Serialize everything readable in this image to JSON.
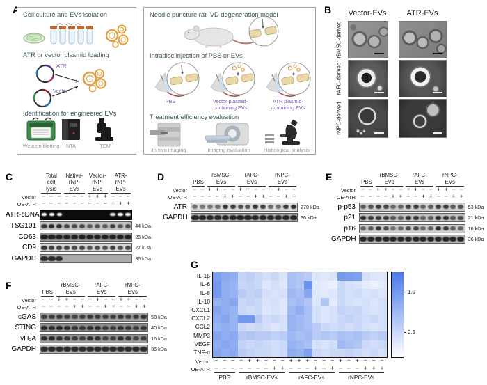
{
  "panels": {
    "a": {
      "label": "A",
      "left": {
        "step1_title": "Cell culture and EVs isolation",
        "step2_title": "ATR or vector plasmid loading",
        "step3_title": "Identification for engineered EVs",
        "plasmid_atr": "ATR",
        "plasmid_vector": "Vector",
        "captions": [
          "Western blotting",
          "NTA",
          "TEM"
        ]
      },
      "right": {
        "step1_title": "Needle puncture rat IVD degeneration model",
        "step2_title": "Intradisc injection of PBS or EVs",
        "step3_title": "Treatment efficiency evaluation",
        "injection_captions": [
          [
            "PBS"
          ],
          [
            "Vector plasmid-",
            "containing EVs"
          ],
          [
            "ATR plasmid-",
            "containing EVs"
          ]
        ],
        "evaluation_captions": [
          "In vivo imaging",
          "Imaging evaluation",
          "Histological analysis"
        ]
      },
      "colors": {
        "title": "#3c5656",
        "caption_gray": "#9a9a9a",
        "caption_purple": "#7a5ba8"
      }
    },
    "b": {
      "label": "B",
      "col_headers": [
        "Vector-EVs",
        "ATR-EVs"
      ],
      "row_labels": [
        "rBMSC-derived",
        "rAFC-derived",
        "rNPC-derived"
      ]
    },
    "c": {
      "label": "C",
      "groups": [
        {
          "lines": [
            "Total",
            "cell",
            "lysis"
          ],
          "lanes": 3
        },
        {
          "lines": [
            "Native-",
            "rNP-",
            "EVs"
          ],
          "lanes": 3
        },
        {
          "lines": [
            "Vector-",
            "rNP-",
            "EVs"
          ],
          "lanes": 3
        },
        {
          "lines": [
            "ATR-",
            "rNP-",
            "EVs"
          ],
          "lanes": 3
        }
      ],
      "conditions": [
        {
          "label": "Vector",
          "marks": [
            "−",
            "−",
            "−",
            "−",
            "−",
            "−",
            "+",
            "+",
            "+",
            "−",
            "−",
            "−"
          ]
        },
        {
          "label": "OE-ATR",
          "marks": [
            "−",
            "−",
            "−",
            "−",
            "−",
            "−",
            "−",
            "−",
            "−",
            "+",
            "+",
            "+"
          ]
        }
      ],
      "blots": [
        {
          "label": "ATR-cDNA",
          "kda": "",
          "gel": true,
          "bands": [
            1,
            1,
            0.95,
            0,
            0,
            0,
            0,
            0,
            0,
            0.9,
            1,
            1.05
          ],
          "bg": "#0d0d0d"
        },
        {
          "label": "TSG101",
          "kda": "44 kDa",
          "bands": [
            0.85,
            1,
            0.95,
            0.75,
            0.7,
            0.75,
            0.55,
            0.65,
            0.55,
            0.8,
            0.6,
            0.7
          ],
          "bg": "#c2c2c2"
        },
        {
          "label": "CD63",
          "kda": "26 kDa",
          "wide": true,
          "bands": [
            1,
            1,
            1,
            1,
            1,
            1,
            1,
            1,
            1,
            1,
            1,
            1
          ],
          "bg": "#8f8f8f"
        },
        {
          "label": "CD9",
          "kda": "27 kDa",
          "bands": [
            0.95,
            0.85,
            0.85,
            0.85,
            0.8,
            0.8,
            0.7,
            0.75,
            0.7,
            0.85,
            0.7,
            0.8
          ],
          "bg": "#d8d8d8"
        },
        {
          "label": "GAPDH",
          "kda": "36 kDa",
          "wide": true,
          "bands": [
            1,
            1,
            1,
            0,
            0,
            0,
            0,
            0,
            0,
            0,
            0,
            0
          ],
          "bg": "#ababab"
        }
      ]
    },
    "d": {
      "label": "D",
      "groups": [
        {
          "lines": [
            "",
            "PBS"
          ],
          "lanes": 2
        },
        {
          "lines": [
            "rBMSC-",
            "EVs"
          ],
          "lanes": 4
        },
        {
          "lines": [
            "rAFC-",
            "EVs"
          ],
          "lanes": 4
        },
        {
          "lines": [
            "rNPC-",
            "EVs"
          ],
          "lanes": 4
        }
      ],
      "conditions": [
        {
          "label": "Vector",
          "marks": [
            "−",
            "−",
            "+",
            "+",
            "−",
            "−",
            "+",
            "+",
            "−",
            "−",
            "+",
            "+",
            "−",
            "−"
          ]
        },
        {
          "label": "OE-ATR",
          "marks": [
            "−",
            "−",
            "−",
            "−",
            "+",
            "+",
            "−",
            "−",
            "+",
            "+",
            "−",
            "−",
            "+",
            "+"
          ]
        }
      ],
      "blots": [
        {
          "label": "ATR",
          "kda": "270 kDa",
          "bands": [
            0.45,
            0.4,
            0.45,
            0.5,
            0.95,
            0.9,
            0.75,
            0.7,
            0.95,
            0.9,
            0.55,
            0.5,
            0.95,
            1
          ],
          "bg": "#dcdcdc"
        },
        {
          "label": "GAPDH",
          "kda": "36 kDa",
          "wide": true,
          "bands": [
            1,
            1,
            1,
            1,
            1,
            1,
            1,
            1,
            1,
            1,
            1,
            1,
            1,
            1
          ],
          "bg": "#a8a8a8"
        }
      ]
    },
    "e": {
      "label": "E",
      "groups": [
        {
          "lines": [
            "",
            "PBS"
          ],
          "lanes": 2
        },
        {
          "lines": [
            "rBMSC-",
            "EVs"
          ],
          "lanes": 4
        },
        {
          "lines": [
            "rAFC-",
            "EVs"
          ],
          "lanes": 4
        },
        {
          "lines": [
            "rNPC-",
            "EVs"
          ],
          "lanes": 4
        }
      ],
      "conditions": [
        {
          "label": "Vector",
          "marks": [
            "−",
            "−",
            "+",
            "+",
            "−",
            "−",
            "+",
            "+",
            "−",
            "−",
            "+",
            "+",
            "−",
            "−"
          ]
        },
        {
          "label": "OE-ATR",
          "marks": [
            "−",
            "−",
            "−",
            "−",
            "+",
            "+",
            "−",
            "−",
            "+",
            "+",
            "−",
            "−",
            "+",
            "+"
          ]
        }
      ],
      "blots": [
        {
          "label": "p-p53",
          "kda": "53 kDa",
          "bands": [
            0.6,
            0.7,
            0.85,
            0.8,
            0.5,
            0.55,
            0.85,
            0.9,
            0.55,
            0.6,
            0.9,
            0.85,
            0.65,
            0.7
          ],
          "bg": "#cfcfcf"
        },
        {
          "label": "p21",
          "kda": "21 kDa",
          "bands": [
            1,
            0.9,
            0.9,
            0.85,
            0.6,
            0.55,
            0.95,
            0.9,
            0.5,
            0.55,
            1,
            0.95,
            0.6,
            0.7
          ],
          "bg": "#c0c0c0"
        },
        {
          "label": "p16",
          "kda": "16 kDa",
          "bands": [
            0.5,
            0.6,
            0.9,
            0.7,
            0.4,
            0.45,
            0.75,
            0.8,
            0.45,
            0.55,
            1,
            0.9,
            0.55,
            0.5
          ],
          "bg": "#cccccc"
        },
        {
          "label": "GAPDH",
          "kda": "36 kDa",
          "wide": true,
          "bands": [
            1,
            1,
            1,
            1,
            1,
            1,
            1,
            1,
            1,
            1,
            1,
            1,
            1,
            1
          ],
          "bg": "#b0b0b0"
        }
      ]
    },
    "f": {
      "label": "F",
      "groups": [
        {
          "lines": [
            "",
            "PBS"
          ],
          "lanes": 2
        },
        {
          "lines": [
            "rBMSC-",
            "EVs"
          ],
          "lanes": 4
        },
        {
          "lines": [
            "rAFC-",
            "EVs"
          ],
          "lanes": 4
        },
        {
          "lines": [
            "rNPC-",
            "EVs"
          ],
          "lanes": 4
        }
      ],
      "conditions": [
        {
          "label": "Vector",
          "marks": [
            "−",
            "−",
            "+",
            "+",
            "−",
            "−",
            "+",
            "+",
            "−",
            "−",
            "+",
            "+",
            "−",
            "−"
          ]
        },
        {
          "label": "OE-ATR",
          "marks": [
            "−",
            "−",
            "−",
            "−",
            "+",
            "+",
            "−",
            "−",
            "+",
            "+",
            "−",
            "−",
            "+",
            "+"
          ]
        }
      ],
      "blots": [
        {
          "label": "cGAS",
          "kda": "58 kDa",
          "bands": [
            0.7,
            0.7,
            0.75,
            0.7,
            0.6,
            0.7,
            0.8,
            0.75,
            0.7,
            0.7,
            0.8,
            0.7,
            0.75,
            0.85
          ],
          "bg": "#9e9e9e"
        },
        {
          "label": "STING",
          "kda": "40 kDa",
          "bands": [
            0.95,
            0.9,
            1,
            0.95,
            0.8,
            0.8,
            0.9,
            0.9,
            0.75,
            0.7,
            0.85,
            0.8,
            0.7,
            0.8
          ],
          "bg": "#8f8f8f"
        },
        {
          "label": "γH₂A",
          "kda": "16 kDa",
          "bands": [
            0.9,
            0.95,
            0.85,
            0.8,
            0.7,
            0.7,
            0.9,
            0.85,
            0.65,
            0.7,
            0.9,
            0.8,
            0.6,
            0.7
          ],
          "bg": "#9a9a9a"
        },
        {
          "label": "GAPDH",
          "kda": "36 kDa",
          "wide": true,
          "bands": [
            0.95,
            0.95,
            0.95,
            0.95,
            0.95,
            0.95,
            0.95,
            0.95,
            0.95,
            0.95,
            0.95,
            0.95,
            0.95,
            0.95
          ],
          "bg": "#b5b5b5"
        }
      ]
    },
    "g": {
      "label": "G"
    }
  },
  "chart_data": {
    "type": "heatmap",
    "title": "",
    "rows": [
      "IL-1β",
      "IL-6",
      "IL-8",
      "IL-10",
      "CXCL1",
      "CXCL2",
      "CCL2",
      "MMP3",
      "VEGF",
      "TNF-α"
    ],
    "col_groups": [
      {
        "label": "PBS",
        "cols": 3
      },
      {
        "label": "rBMSC-EVs",
        "cols": 6
      },
      {
        "label": "rAFC-EVs",
        "cols": 6
      },
      {
        "label": "rNPC-EVs",
        "cols": 6
      }
    ],
    "condition_labels": [
      "Vector",
      "OE-ATR"
    ],
    "vector_marks": [
      "−",
      "−",
      "−",
      "+",
      "+",
      "+",
      "−",
      "−",
      "−",
      "+",
      "+",
      "+",
      "−",
      "−",
      "−",
      "+",
      "+",
      "+",
      "−",
      "−",
      "−"
    ],
    "oe_atr_marks": [
      "−",
      "−",
      "−",
      "−",
      "−",
      "−",
      "+",
      "+",
      "+",
      "−",
      "−",
      "−",
      "+",
      "+",
      "+",
      "−",
      "−",
      "−",
      "+",
      "+",
      "+"
    ],
    "values": [
      [
        0.95,
        0.88,
        0.85,
        0.55,
        0.58,
        0.5,
        0.45,
        0.5,
        0.42,
        0.7,
        0.65,
        0.6,
        0.4,
        0.38,
        0.42,
        1.0,
        0.98,
        0.95,
        0.45,
        0.4,
        0.38
      ],
      [
        1.0,
        0.85,
        0.8,
        0.52,
        0.55,
        0.5,
        0.4,
        0.45,
        0.4,
        0.7,
        0.65,
        1.05,
        0.38,
        0.35,
        0.32,
        0.5,
        0.45,
        0.42,
        0.35,
        0.32,
        0.35
      ],
      [
        1.0,
        0.85,
        0.8,
        0.6,
        0.55,
        0.58,
        0.45,
        0.42,
        0.45,
        0.75,
        0.7,
        0.9,
        0.4,
        0.36,
        0.4,
        0.5,
        0.45,
        0.48,
        0.42,
        0.45,
        0.4
      ],
      [
        0.8,
        0.85,
        0.9,
        0.5,
        0.55,
        0.5,
        0.42,
        0.45,
        0.4,
        0.7,
        0.75,
        0.65,
        0.4,
        0.65,
        0.36,
        0.5,
        0.45,
        0.42,
        0.45,
        0.4,
        0.45
      ],
      [
        0.9,
        0.85,
        0.8,
        0.5,
        0.46,
        0.5,
        0.4,
        0.44,
        0.4,
        0.75,
        0.85,
        0.7,
        0.45,
        0.4,
        0.44,
        0.55,
        0.5,
        0.52,
        0.45,
        0.42,
        0.45
      ],
      [
        0.85,
        0.9,
        0.8,
        1.0,
        1.0,
        0.6,
        0.46,
        0.5,
        0.45,
        0.8,
        0.75,
        0.7,
        0.45,
        0.4,
        0.44,
        0.5,
        0.55,
        0.5,
        0.46,
        0.5,
        0.45
      ],
      [
        0.8,
        0.85,
        0.8,
        0.5,
        0.46,
        0.5,
        0.45,
        0.4,
        0.44,
        0.8,
        0.75,
        0.7,
        0.6,
        0.5,
        0.46,
        0.5,
        0.46,
        0.5,
        0.45,
        0.42,
        0.45
      ],
      [
        0.9,
        0.85,
        0.88,
        0.62,
        0.65,
        0.6,
        0.6,
        0.56,
        0.6,
        0.75,
        0.7,
        0.74,
        0.6,
        0.64,
        0.6,
        0.7,
        0.66,
        0.7,
        0.6,
        0.56,
        0.6
      ],
      [
        0.85,
        0.9,
        0.85,
        0.55,
        0.5,
        0.54,
        0.5,
        0.46,
        0.5,
        0.8,
        0.75,
        0.7,
        0.45,
        0.42,
        0.46,
        0.75,
        0.7,
        0.66,
        0.5,
        0.46,
        0.5
      ],
      [
        0.9,
        0.85,
        0.88,
        0.6,
        0.55,
        0.5,
        0.5,
        0.46,
        0.5,
        0.85,
        0.8,
        0.95,
        0.5,
        0.46,
        0.5,
        0.5,
        0.55,
        0.5,
        0.46,
        0.5,
        0.45
      ]
    ],
    "colorbar_ticks": [
      "1.0",
      "0.5"
    ],
    "scale": {
      "min": 0.2,
      "max": 1.25
    },
    "colormap": {
      "low": "#ffffff",
      "high": "#4a7ae8"
    },
    "legend_position": "right",
    "grid": false
  }
}
